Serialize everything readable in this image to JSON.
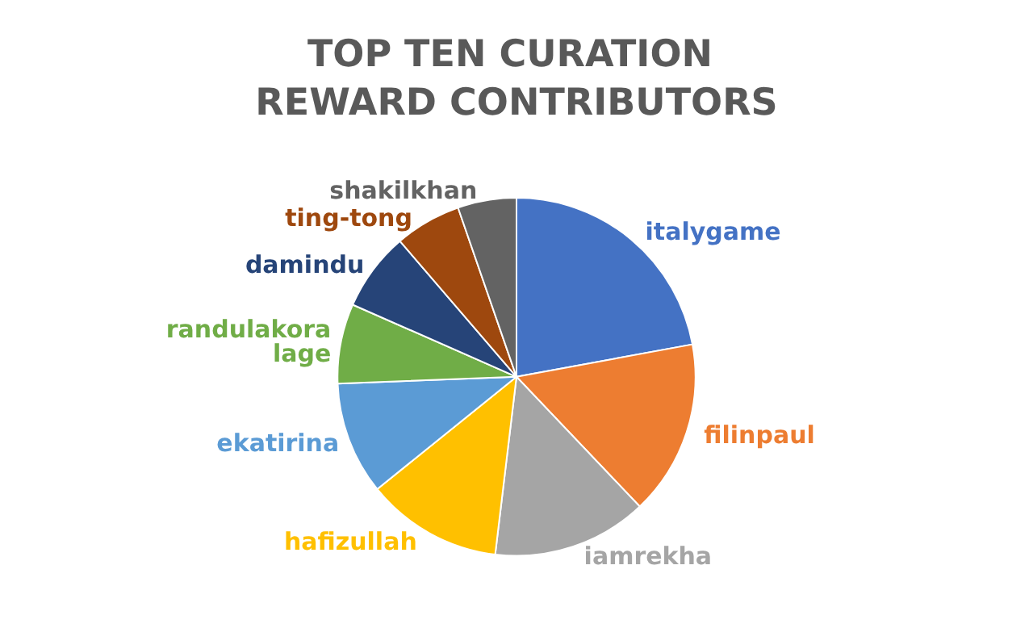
{
  "chart_data": {
    "type": "pie",
    "title": "TOP TEN CURATION REWARD CONTRIBUTORS",
    "categories": [
      "italygame",
      "filinpaul",
      "iamrekha",
      "hafizullah",
      "ekatirina",
      "randulakoralage",
      "damindu",
      "ting-tong",
      "shakilkhan"
    ],
    "values": [
      22.1,
      15.8,
      14.0,
      12.3,
      10.2,
      7.2,
      7.1,
      6.0,
      5.3
    ],
    "colors": [
      "#4472c4",
      "#ed7d31",
      "#a5a5a5",
      "#ffc000",
      "#5b9bd5",
      "#70ad47",
      "#264478",
      "#9e480e",
      "#636363"
    ],
    "legend": false
  }
}
